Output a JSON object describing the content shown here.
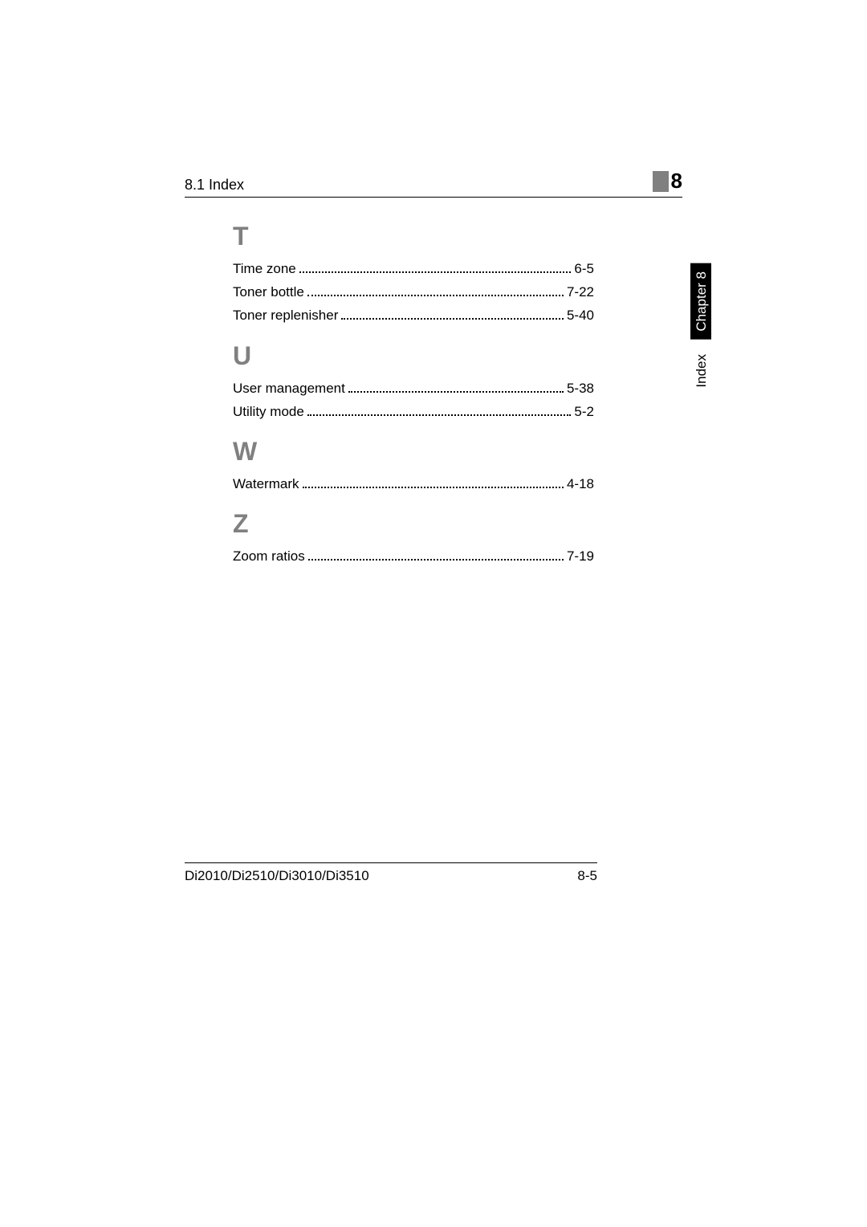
{
  "header": {
    "section_title": "8.1 Index",
    "chapter_number": "8"
  },
  "side_tabs": {
    "chapter_label": "Chapter 8",
    "index_label": "Index"
  },
  "sections": {
    "T": {
      "letter": "T",
      "entries": [
        {
          "term": "Time zone",
          "page": "6-5"
        },
        {
          "term": "Toner bottle",
          "page": "7-22"
        },
        {
          "term": "Toner replenisher",
          "page": "5-40"
        }
      ]
    },
    "U": {
      "letter": "U",
      "entries": [
        {
          "term": "User management",
          "page": "5-38"
        },
        {
          "term": "Utility mode",
          "page": "5-2"
        }
      ]
    },
    "W": {
      "letter": "W",
      "entries": [
        {
          "term": "Watermark",
          "page": "4-18"
        }
      ]
    },
    "Z": {
      "letter": "Z",
      "entries": [
        {
          "term": "Zoom ratios",
          "page": "7-19"
        }
      ]
    }
  },
  "footer": {
    "model": "Di2010/Di2510/Di3010/Di3510",
    "page_number": "8-5"
  },
  "colors": {
    "section_letter": "#808080",
    "text": "#000000",
    "background": "#ffffff",
    "tab_bg": "#000000",
    "tab_fg": "#ffffff",
    "gray_block": "#808080"
  },
  "typography": {
    "body_fontsize": 17,
    "section_letter_fontsize": 32,
    "chapter_num_fontsize": 26
  }
}
